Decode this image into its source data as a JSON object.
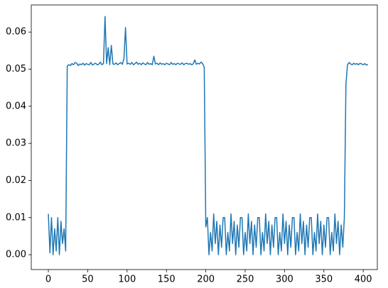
{
  "chart_data": {
    "type": "line",
    "color": "#1f77b4",
    "xlim": [
      -21.7,
      417.9
    ],
    "ylim": [
      -0.004,
      0.0673
    ],
    "xticks": [
      0,
      50,
      100,
      150,
      200,
      250,
      300,
      350,
      400
    ],
    "yticks": [
      {
        "value": 0,
        "label": "0.00"
      },
      {
        "value": 0.01,
        "label": "0.01"
      },
      {
        "value": 0.02,
        "label": "0.02"
      },
      {
        "value": 0.03,
        "label": "0.03"
      },
      {
        "value": 0.04,
        "label": "0.04"
      },
      {
        "value": 0.05,
        "label": "0.05"
      },
      {
        "value": 0.06,
        "label": "0.06"
      }
    ],
    "x": [
      0,
      2,
      4,
      6,
      8,
      10,
      12,
      14,
      16,
      18,
      20,
      22,
      24,
      26,
      28,
      30,
      32,
      34,
      36,
      38,
      40,
      42,
      44,
      46,
      48,
      50,
      52,
      54,
      56,
      58,
      60,
      62,
      64,
      66,
      68,
      70,
      72,
      74,
      76,
      78,
      80,
      82,
      84,
      86,
      88,
      90,
      92,
      94,
      96,
      98,
      100,
      102,
      104,
      106,
      108,
      110,
      112,
      114,
      116,
      118,
      120,
      122,
      124,
      126,
      128,
      130,
      132,
      134,
      136,
      138,
      140,
      142,
      144,
      146,
      148,
      150,
      152,
      154,
      156,
      158,
      160,
      162,
      164,
      166,
      168,
      170,
      172,
      174,
      176,
      178,
      180,
      182,
      184,
      186,
      188,
      190,
      192,
      194,
      196,
      198,
      200,
      202,
      204,
      206,
      208,
      210,
      212,
      214,
      216,
      218,
      220,
      222,
      224,
      226,
      228,
      230,
      232,
      234,
      236,
      238,
      240,
      242,
      244,
      246,
      248,
      250,
      252,
      254,
      256,
      258,
      260,
      262,
      264,
      266,
      268,
      270,
      272,
      274,
      276,
      278,
      280,
      282,
      284,
      286,
      288,
      290,
      292,
      294,
      296,
      298,
      300,
      302,
      304,
      306,
      308,
      310,
      312,
      314,
      316,
      318,
      320,
      322,
      324,
      326,
      328,
      330,
      332,
      334,
      336,
      338,
      340,
      342,
      344,
      346,
      348,
      350,
      352,
      354,
      356,
      358,
      360,
      362,
      364,
      366,
      368,
      370,
      372,
      374,
      376,
      378,
      380,
      382,
      384,
      386,
      388,
      390,
      392,
      394,
      396,
      398,
      400,
      402,
      404,
      406
    ],
    "values": [
      0.011,
      0.0005,
      0.01,
      0.0,
      0.007,
      0.001,
      0.01,
      0.0,
      0.009,
      0.003,
      0.007,
      0.001,
      0.0508,
      0.0512,
      0.051,
      0.0515,
      0.0512,
      0.0518,
      0.0516,
      0.051,
      0.0514,
      0.0512,
      0.0516,
      0.0511,
      0.0515,
      0.0513,
      0.0512,
      0.0518,
      0.0511,
      0.0514,
      0.0516,
      0.0512,
      0.0513,
      0.0519,
      0.0512,
      0.0515,
      0.0642,
      0.0515,
      0.0558,
      0.0512,
      0.0564,
      0.0514,
      0.0513,
      0.0517,
      0.0512,
      0.0515,
      0.0518,
      0.0513,
      0.0528,
      0.0612,
      0.0514,
      0.0516,
      0.0513,
      0.0518,
      0.0512,
      0.0515,
      0.0519,
      0.0513,
      0.0516,
      0.0512,
      0.0517,
      0.0514,
      0.0512,
      0.0518,
      0.0513,
      0.0515,
      0.0512,
      0.0535,
      0.0514,
      0.0516,
      0.0512,
      0.0517,
      0.0513,
      0.0515,
      0.0512,
      0.0516,
      0.0514,
      0.0512,
      0.0518,
      0.0513,
      0.0515,
      0.0512,
      0.0516,
      0.0514,
      0.0513,
      0.0517,
      0.0512,
      0.0515,
      0.0516,
      0.0513,
      0.0515,
      0.0512,
      0.0514,
      0.0525,
      0.0513,
      0.0516,
      0.0514,
      0.0519,
      0.0515,
      0.0505,
      0.0075,
      0.01,
      0.0,
      0.006,
      0.001,
      0.011,
      0.003,
      0.009,
      0.0,
      0.008,
      0.002,
      0.01,
      0.01,
      0.0,
      0.006,
      0.001,
      0.011,
      0.003,
      0.009,
      0.0,
      0.008,
      0.002,
      0.01,
      0.01,
      0.0,
      0.006,
      0.001,
      0.011,
      0.003,
      0.009,
      0.0,
      0.008,
      0.002,
      0.01,
      0.01,
      0.0,
      0.006,
      0.001,
      0.011,
      0.003,
      0.009,
      0.0,
      0.008,
      0.002,
      0.01,
      0.01,
      0.0,
      0.006,
      0.001,
      0.011,
      0.003,
      0.009,
      0.0,
      0.008,
      0.002,
      0.01,
      0.01,
      0.0,
      0.006,
      0.001,
      0.011,
      0.003,
      0.009,
      0.0,
      0.008,
      0.002,
      0.01,
      0.01,
      0.0,
      0.006,
      0.001,
      0.011,
      0.003,
      0.009,
      0.0,
      0.008,
      0.002,
      0.01,
      0.01,
      0.0,
      0.006,
      0.001,
      0.011,
      0.003,
      0.009,
      0.0,
      0.008,
      0.002,
      0.01,
      0.046,
      0.0512,
      0.0518,
      0.0514,
      0.0512,
      0.0516,
      0.0513,
      0.0515,
      0.0512,
      0.0516,
      0.0514,
      0.0512,
      0.0515,
      0.0511,
      0.0513
    ]
  }
}
